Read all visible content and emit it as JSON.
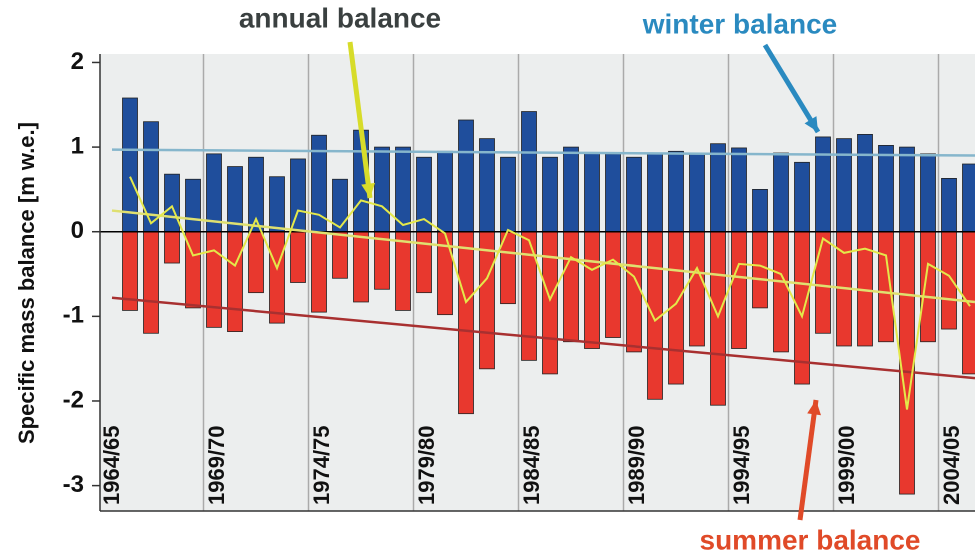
{
  "chart_data": {
    "type": "bar",
    "ylabel": "Specific mass balance [m w.e.]",
    "categories": [
      "1964/65",
      null,
      null,
      null,
      null,
      "1969/70",
      null,
      null,
      null,
      null,
      "1974/75",
      null,
      null,
      null,
      null,
      "1979/80",
      null,
      null,
      null,
      null,
      "1984/85",
      null,
      null,
      null,
      null,
      "1989/90",
      null,
      null,
      null,
      null,
      "1994/95",
      null,
      null,
      null,
      null,
      "1999/00",
      null,
      null,
      null,
      null,
      "2004/05"
    ],
    "series": [
      {
        "name": "winter balance",
        "color": "#1f4e9c",
        "values": [
          1.58,
          1.3,
          0.68,
          0.62,
          0.92,
          0.77,
          0.88,
          0.65,
          0.86,
          1.14,
          0.62,
          1.2,
          1.0,
          1.0,
          0.88,
          0.95,
          1.32,
          1.1,
          0.88,
          1.42,
          0.88,
          1.0,
          0.93,
          0.92,
          0.88,
          0.93,
          0.95,
          0.92,
          1.04,
          0.99,
          0.5,
          0.93,
          0.82,
          1.12,
          1.1,
          1.15,
          1.02,
          1.0,
          0.92,
          0.63,
          0.8
        ]
      },
      {
        "name": "summer balance",
        "color": "#e8382e",
        "values": [
          -0.93,
          -1.2,
          -0.37,
          -0.9,
          -1.13,
          -1.18,
          -0.72,
          -1.08,
          -0.6,
          -0.95,
          -0.55,
          -0.83,
          -0.68,
          -0.93,
          -0.72,
          -0.98,
          -2.15,
          -1.62,
          -0.85,
          -1.52,
          -1.68,
          -1.3,
          -1.38,
          -1.25,
          -1.42,
          -1.98,
          -1.8,
          -1.35,
          -2.05,
          -1.38,
          -0.9,
          -1.42,
          -1.8,
          -1.2,
          -1.35,
          -1.35,
          -1.3,
          -3.1,
          -1.3,
          -1.15,
          -1.68
        ]
      },
      {
        "name": "annual balance",
        "color": "#e4e84a",
        "line": true,
        "values": [
          0.65,
          0.1,
          0.3,
          -0.28,
          -0.22,
          -0.4,
          0.15,
          -0.43,
          0.25,
          0.2,
          0.05,
          0.37,
          0.3,
          0.08,
          0.15,
          -0.02,
          -0.83,
          -0.55,
          0.02,
          -0.1,
          -0.8,
          -0.3,
          -0.45,
          -0.33,
          -0.53,
          -1.05,
          -0.85,
          -0.43,
          -1.0,
          -0.38,
          -0.4,
          -0.5,
          -1.0,
          -0.08,
          -0.25,
          -0.2,
          -0.28,
          -2.1,
          -0.38,
          -0.52,
          -0.88
        ]
      }
    ],
    "trends": [
      {
        "color": "#86b6cc",
        "start": 0.97,
        "end": 0.9
      },
      {
        "color": "#a83030",
        "start": -0.78,
        "end": -1.73
      },
      {
        "color": "#dfe070",
        "start": 0.25,
        "end": -0.83
      }
    ],
    "annotations": [
      {
        "text": "annual balance",
        "color": "#3a4040"
      },
      {
        "text": "winter balance",
        "color": "#2a8ac0"
      },
      {
        "text": "summer balance",
        "color": "#e04a28"
      }
    ],
    "ylim": [
      -3.3,
      2.1
    ],
    "yticks": [
      -3,
      -2,
      -1,
      0,
      1,
      2
    ]
  }
}
